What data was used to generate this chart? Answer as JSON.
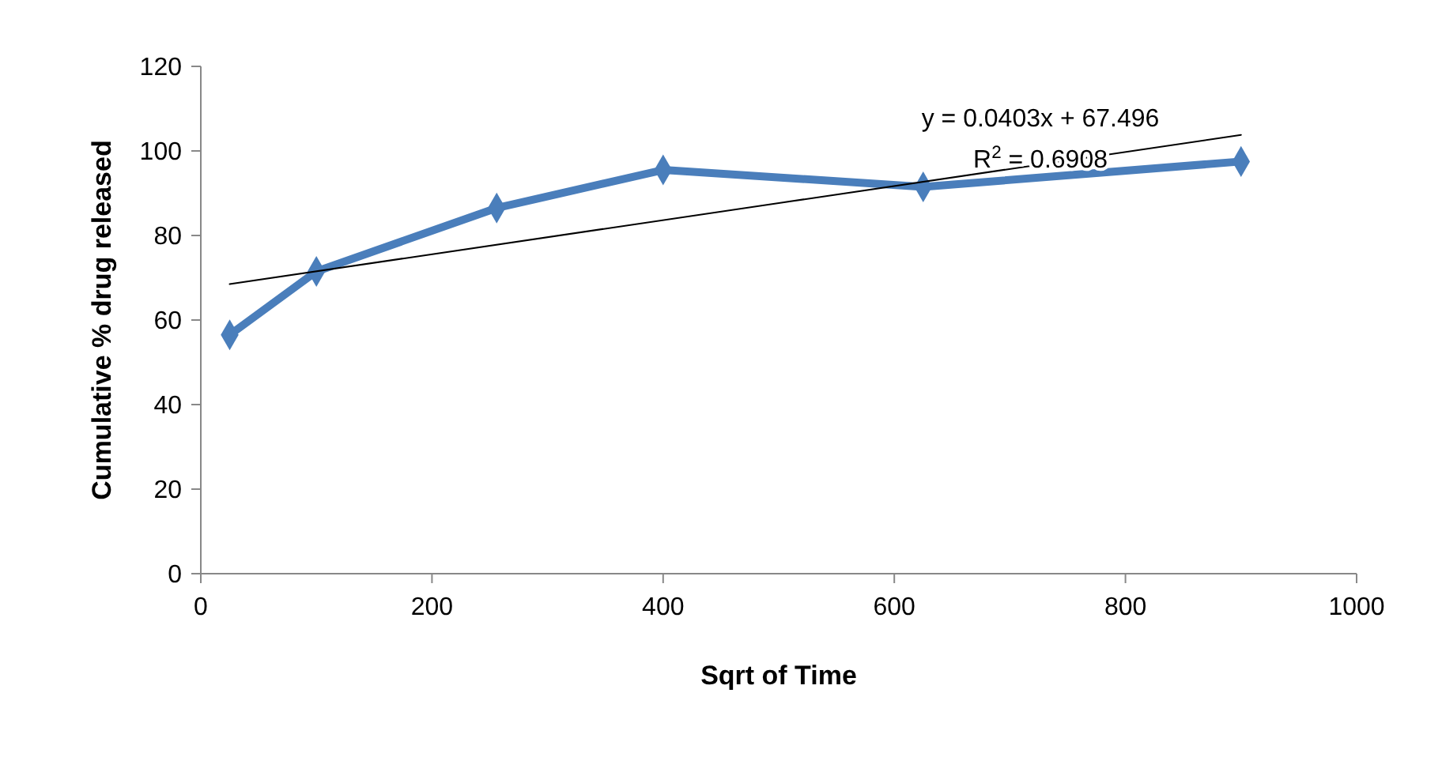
{
  "chart_data": {
    "type": "line",
    "xlabel": "Sqrt of Time",
    "ylabel": "Cumulative % drug released",
    "xlim": [
      0,
      1000
    ],
    "xticks": [
      0,
      200,
      400,
      600,
      800,
      1000
    ],
    "ylim": [
      0,
      120
    ],
    "yticks": [
      0,
      20,
      40,
      60,
      80,
      100,
      120
    ],
    "series": [
      {
        "color": "#4a7ebb",
        "x": [
          25,
          100,
          256,
          400,
          625,
          900
        ],
        "values": [
          56.5,
          71.5,
          86.5,
          95.5,
          91.5,
          97.5
        ],
        "marker": "diamond"
      },
      {
        "color": "#000000",
        "x": [
          25,
          900
        ],
        "values": [
          68.5,
          103.8
        ],
        "marker": "none"
      }
    ],
    "annotations": [
      "y = 0.0403x + 67.496",
      "R$^{2}$ = 0.6908"
    ],
    "grid": false
  }
}
